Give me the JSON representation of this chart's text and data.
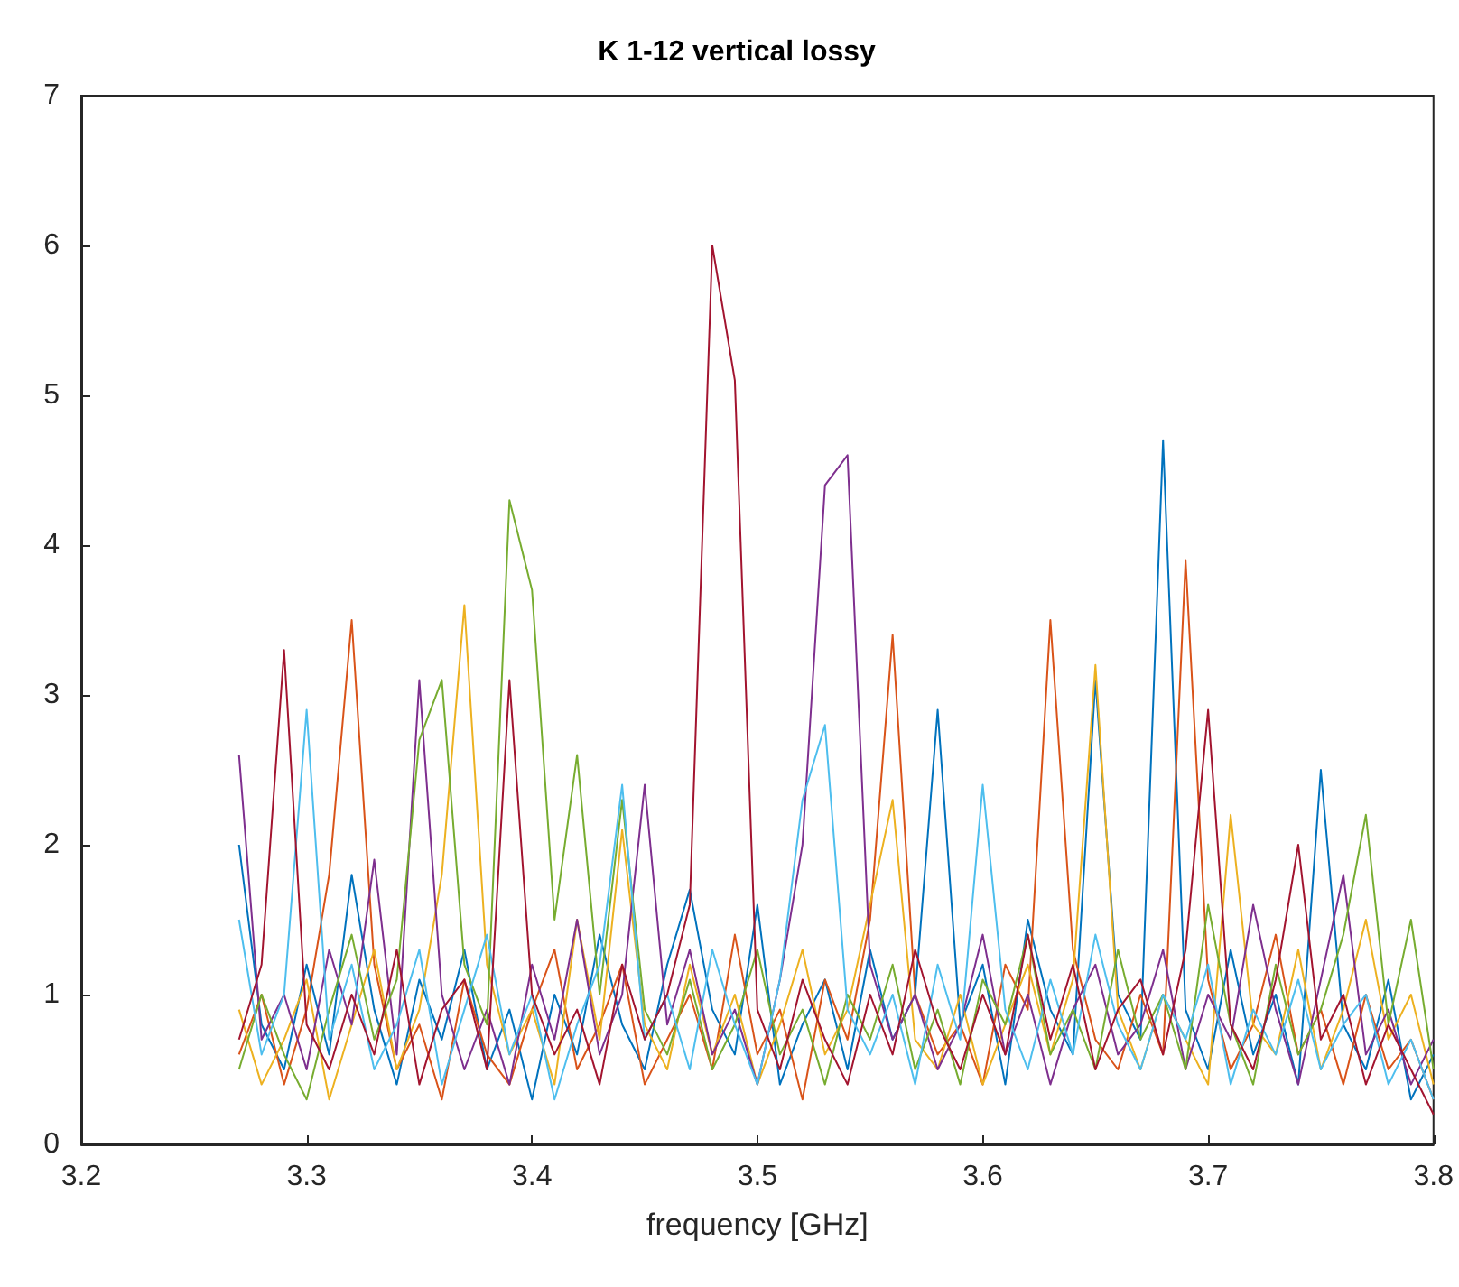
{
  "chart_data": {
    "type": "line",
    "title": "K 1-12 vertical lossy",
    "xlabel": "frequency [GHz]",
    "x": [
      3.27,
      3.28,
      3.29,
      3.3,
      3.31,
      3.32,
      3.33,
      3.34,
      3.35,
      3.36,
      3.37,
      3.38,
      3.39,
      3.4,
      3.41,
      3.42,
      3.43,
      3.44,
      3.45,
      3.46,
      3.47,
      3.48,
      3.49,
      3.5,
      3.51,
      3.52,
      3.53,
      3.54,
      3.55,
      3.56,
      3.57,
      3.58,
      3.59,
      3.6,
      3.61,
      3.62,
      3.63,
      3.64,
      3.65,
      3.66,
      3.67,
      3.68,
      3.69,
      3.7,
      3.71,
      3.72,
      3.73,
      3.74,
      3.75,
      3.76,
      3.77,
      3.78,
      3.79,
      3.8
    ],
    "xlim": [
      3.2,
      3.8
    ],
    "xticks": [
      3.2,
      3.3,
      3.4,
      3.5,
      3.6,
      3.7,
      3.8
    ],
    "ylim": [
      0,
      7
    ],
    "yticks": [
      0,
      1,
      2,
      3,
      4,
      5,
      6,
      7
    ],
    "grid": false,
    "marker": "none",
    "line_style": "solid",
    "series": [
      {
        "color": "#0072bd",
        "values": [
          2.0,
          0.8,
          0.5,
          1.2,
          0.6,
          1.8,
          0.9,
          0.4,
          1.1,
          0.7,
          1.3,
          0.5,
          0.9,
          0.3,
          1.0,
          0.6,
          1.4,
          0.8,
          0.5,
          1.2,
          1.7,
          0.9,
          0.6,
          1.6,
          0.4,
          0.8,
          1.1,
          0.5,
          1.3,
          0.7,
          1.0,
          2.9,
          0.8,
          1.2,
          0.4,
          1.5,
          0.9,
          0.6,
          3.1,
          1.0,
          0.7,
          4.7,
          0.9,
          0.5,
          1.3,
          0.6,
          1.0,
          0.4,
          2.5,
          0.8,
          0.5,
          1.1,
          0.3,
          0.6
        ]
      },
      {
        "color": "#d95319",
        "values": [
          0.6,
          1.0,
          0.4,
          0.9,
          1.8,
          3.5,
          1.2,
          0.5,
          0.8,
          0.3,
          1.1,
          0.6,
          0.4,
          0.9,
          1.3,
          0.5,
          0.8,
          1.2,
          0.4,
          0.7,
          1.0,
          0.5,
          1.4,
          0.6,
          0.9,
          0.3,
          1.1,
          0.7,
          1.5,
          3.4,
          1.0,
          0.6,
          0.8,
          0.4,
          1.2,
          0.9,
          3.5,
          1.3,
          0.7,
          0.5,
          1.0,
          0.6,
          3.9,
          1.1,
          0.5,
          0.8,
          1.4,
          0.6,
          0.9,
          0.4,
          1.0,
          0.5,
          0.7,
          0.3
        ]
      },
      {
        "color": "#edb120",
        "values": [
          0.9,
          0.4,
          0.7,
          1.1,
          0.3,
          0.8,
          1.3,
          0.5,
          0.9,
          1.8,
          3.6,
          1.2,
          0.6,
          0.9,
          0.4,
          1.5,
          0.7,
          2.1,
          0.8,
          0.5,
          1.2,
          0.6,
          1.0,
          0.4,
          0.8,
          1.3,
          0.6,
          0.9,
          1.6,
          2.3,
          0.7,
          0.5,
          1.0,
          0.4,
          0.8,
          1.2,
          0.6,
          1.1,
          3.2,
          0.9,
          0.5,
          1.0,
          0.7,
          0.4,
          2.2,
          0.8,
          0.6,
          1.3,
          0.5,
          0.9,
          1.5,
          0.7,
          1.0,
          0.4
        ]
      },
      {
        "color": "#7e2f8e",
        "values": [
          2.6,
          0.7,
          1.0,
          0.5,
          1.3,
          0.8,
          1.9,
          0.6,
          3.1,
          1.0,
          0.5,
          0.9,
          0.4,
          1.2,
          0.7,
          1.5,
          0.6,
          1.0,
          2.4,
          0.8,
          1.3,
          0.6,
          0.9,
          0.4,
          1.1,
          2.0,
          4.4,
          4.6,
          1.2,
          0.7,
          1.0,
          0.5,
          0.8,
          1.4,
          0.6,
          1.0,
          0.4,
          0.9,
          1.2,
          0.6,
          0.8,
          1.3,
          0.5,
          1.0,
          0.7,
          1.6,
          0.9,
          0.4,
          1.1,
          1.8,
          0.6,
          0.9,
          0.4,
          0.7
        ]
      },
      {
        "color": "#77ac30",
        "values": [
          0.5,
          1.0,
          0.6,
          0.3,
          0.9,
          1.4,
          0.7,
          1.1,
          2.7,
          3.1,
          1.2,
          0.8,
          4.3,
          3.7,
          1.5,
          2.6,
          1.0,
          2.3,
          0.9,
          0.6,
          1.1,
          0.5,
          0.8,
          1.3,
          0.6,
          0.9,
          0.4,
          1.0,
          0.7,
          1.2,
          0.5,
          0.9,
          0.4,
          1.1,
          0.8,
          1.4,
          0.6,
          0.9,
          0.5,
          1.3,
          0.7,
          1.0,
          0.5,
          1.6,
          0.8,
          0.4,
          1.2,
          0.6,
          0.9,
          1.4,
          2.2,
          0.8,
          1.5,
          0.5
        ]
      },
      {
        "color": "#4dbeee",
        "values": [
          1.5,
          0.6,
          1.0,
          2.9,
          0.7,
          1.2,
          0.5,
          0.8,
          1.3,
          0.4,
          0.9,
          1.4,
          0.6,
          1.0,
          0.3,
          0.8,
          1.2,
          2.4,
          0.7,
          1.0,
          0.5,
          1.3,
          0.8,
          0.4,
          1.1,
          2.3,
          2.8,
          0.9,
          0.6,
          1.0,
          0.4,
          1.2,
          0.7,
          2.4,
          0.9,
          0.5,
          1.1,
          0.6,
          1.4,
          0.8,
          0.5,
          1.0,
          0.7,
          1.2,
          0.4,
          0.9,
          0.6,
          1.1,
          0.5,
          0.8,
          1.0,
          0.4,
          0.7,
          0.3
        ]
      },
      {
        "color": "#a2142f",
        "values": [
          0.7,
          1.2,
          3.3,
          0.8,
          0.5,
          1.0,
          0.6,
          1.3,
          0.4,
          0.9,
          1.1,
          0.5,
          3.1,
          1.0,
          0.6,
          0.9,
          0.4,
          1.2,
          0.7,
          1.0,
          1.6,
          6.0,
          5.1,
          0.9,
          0.5,
          1.1,
          0.7,
          0.4,
          1.0,
          0.6,
          1.3,
          0.8,
          0.5,
          1.0,
          0.6,
          1.4,
          0.7,
          1.2,
          0.5,
          0.9,
          1.1,
          0.6,
          1.3,
          2.9,
          0.8,
          0.5,
          1.1,
          2.0,
          0.7,
          1.0,
          0.4,
          0.8,
          0.5,
          0.2
        ]
      }
    ]
  }
}
